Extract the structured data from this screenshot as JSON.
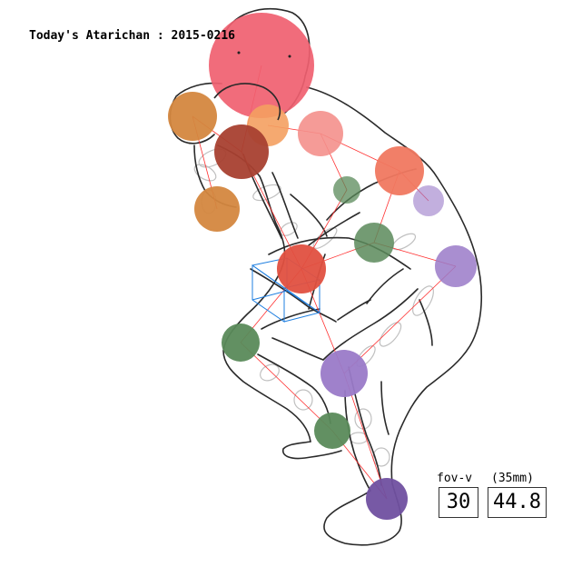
{
  "title": "Today's Atarichan : 2015-0216",
  "fov": {
    "label": "fov-v",
    "lens_label": "(35mm)",
    "value": "30",
    "lens_value": "44.8"
  },
  "colors": {
    "outline": "#2a2a2a",
    "skeleton": "#ff2020",
    "ghost": "#c0c0c0",
    "cube": "#1f7fe0",
    "head": "#f06070",
    "hand_right": "#d4873f",
    "chest": "#a84030",
    "torso": "#f07860",
    "neck": "#f4a060",
    "shoulder": "#f4908c",
    "spine_mid": "#e05040",
    "left_leg": "#5a8a5a",
    "right_leg": "#9a7ac8"
  }
}
